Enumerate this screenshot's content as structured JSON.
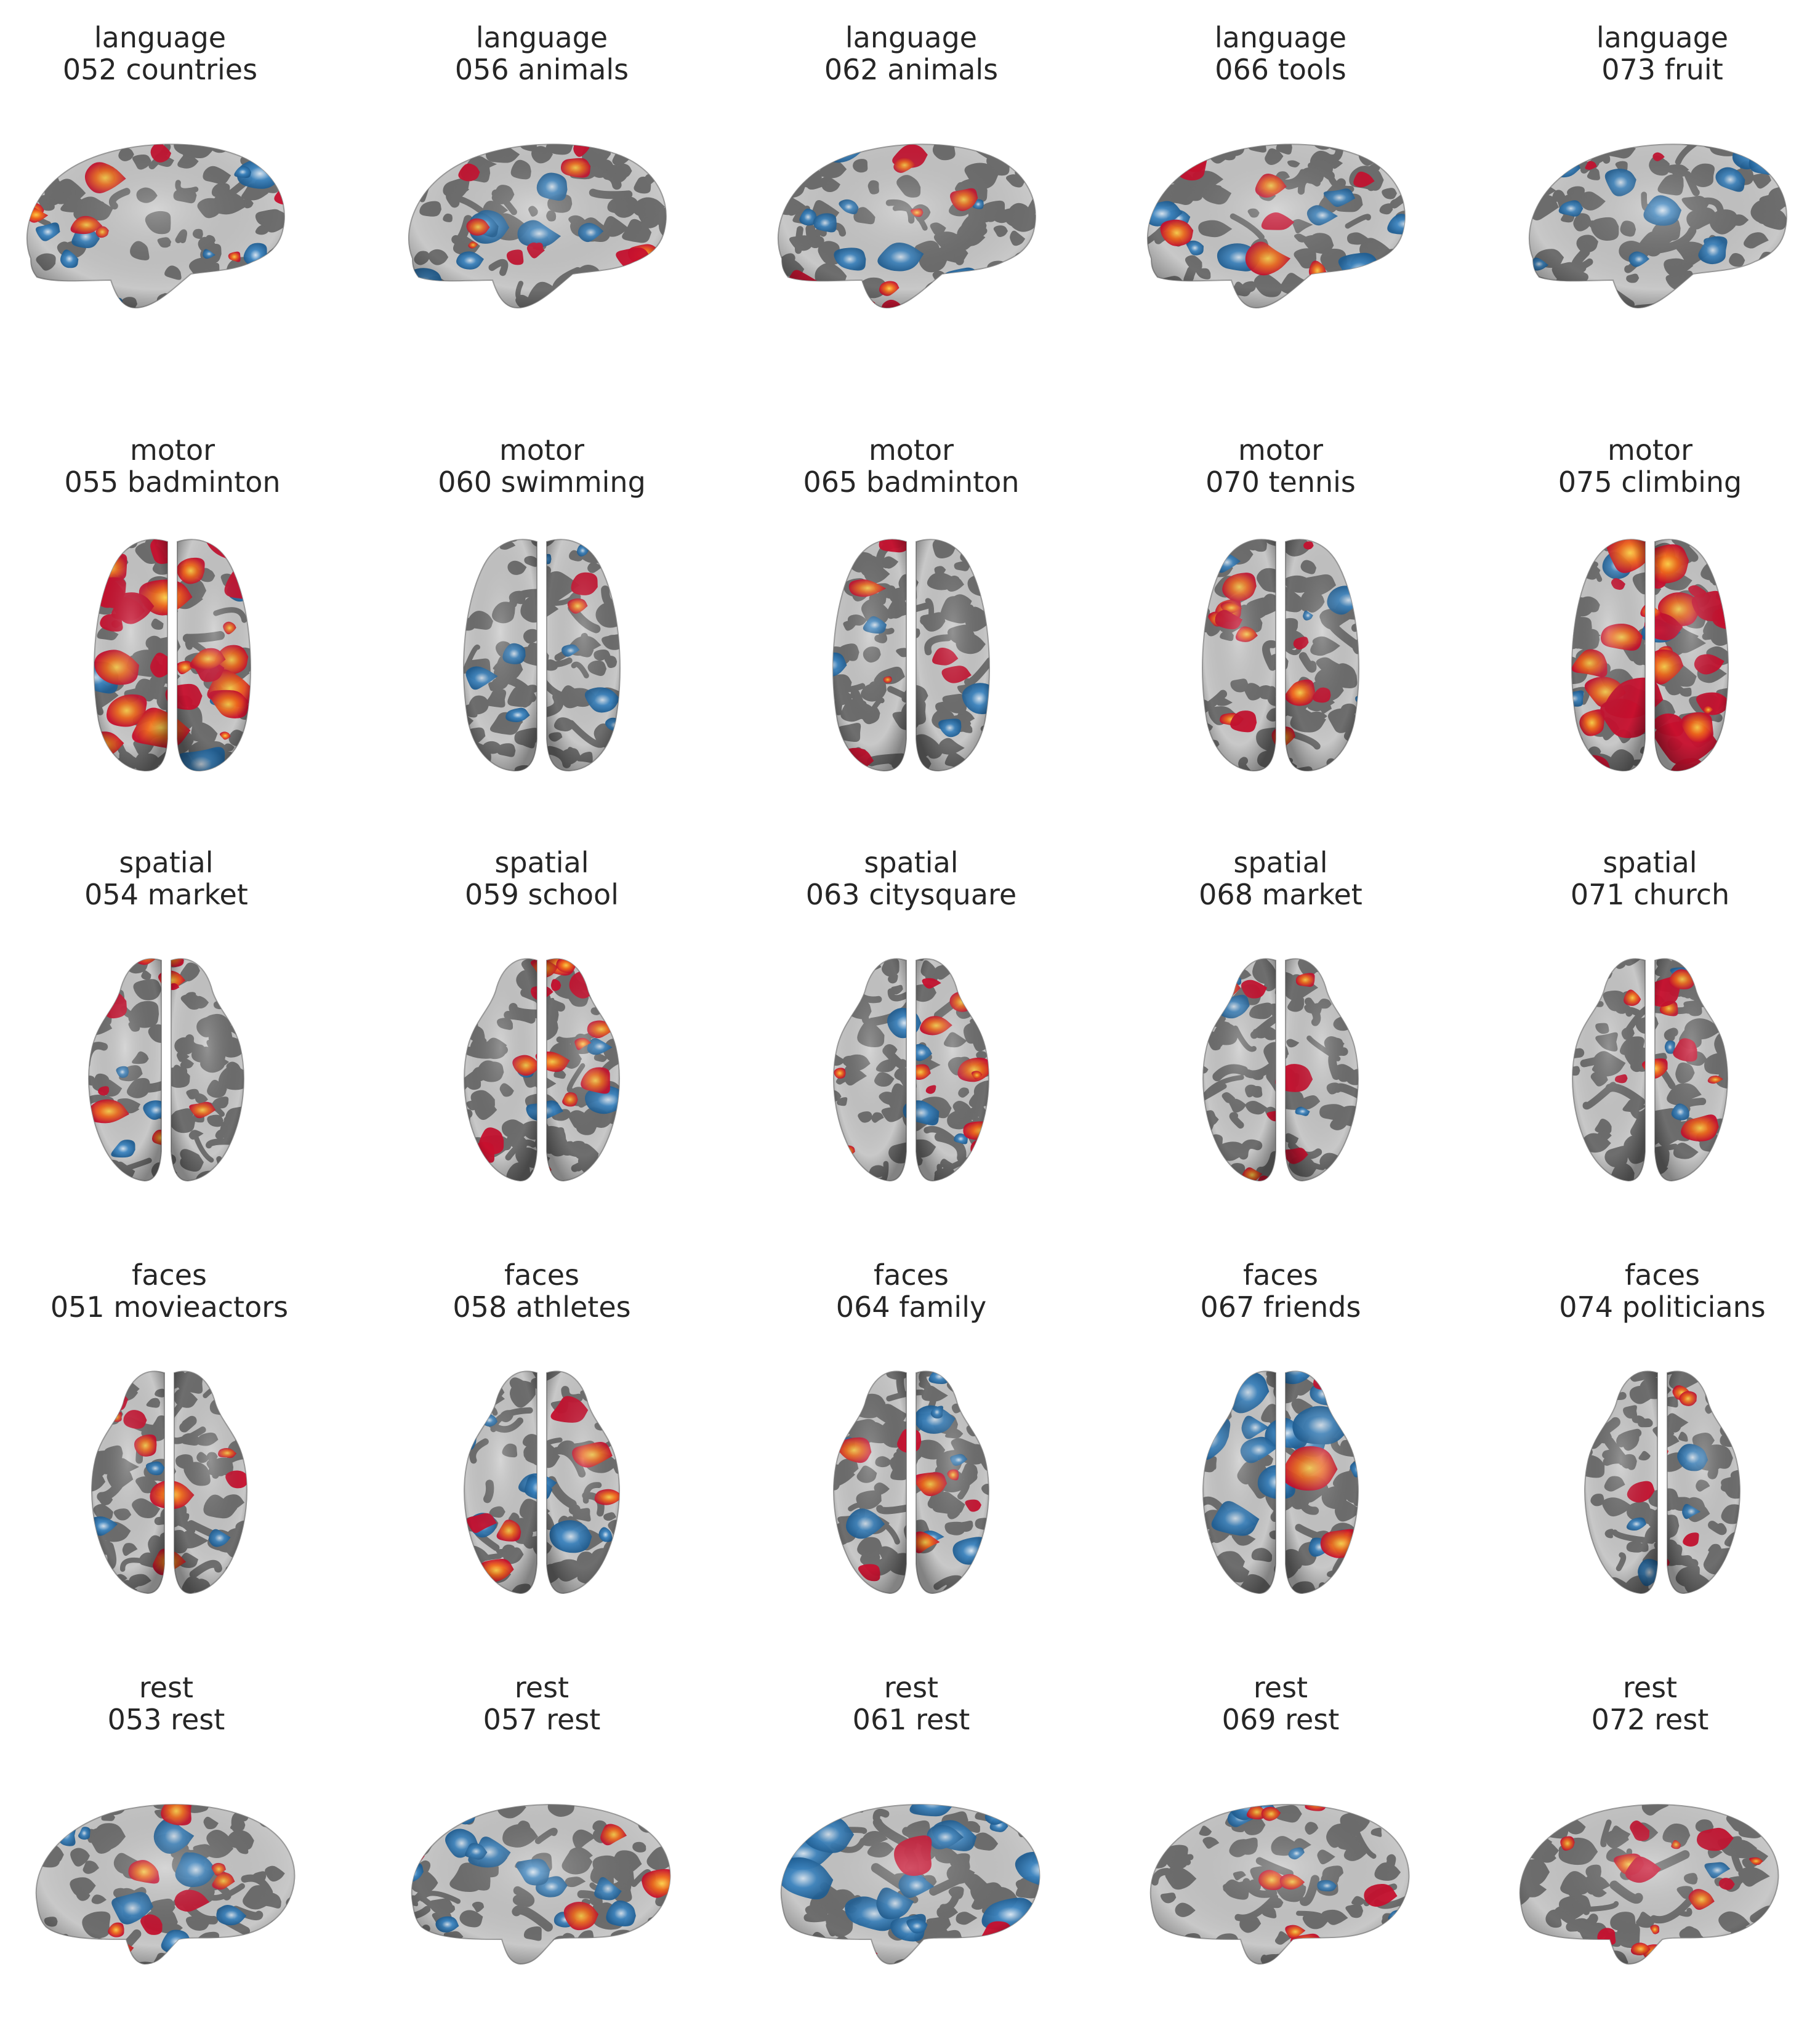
{
  "figure": {
    "rows": [
      {
        "view": "lateral-left",
        "panels": [
          {
            "category": "language",
            "run": "052 countries",
            "balance": "mixed"
          },
          {
            "category": "language",
            "run": "056 animals",
            "balance": "mixed"
          },
          {
            "category": "language",
            "run": "062 animals",
            "balance": "mixed"
          },
          {
            "category": "language",
            "run": "066 tools",
            "balance": "mixed"
          },
          {
            "category": "language",
            "run": "073 fruit",
            "balance": "blue"
          }
        ]
      },
      {
        "view": "dorsal",
        "panels": [
          {
            "category": "motor",
            "run": "055 badminton",
            "balance": "red-heavy"
          },
          {
            "category": "motor",
            "run": "060 swimming",
            "balance": "blue-light"
          },
          {
            "category": "motor",
            "run": "065 badminton",
            "balance": "red-light"
          },
          {
            "category": "motor",
            "run": "070 tennis",
            "balance": "red"
          },
          {
            "category": "motor",
            "run": "075 climbing",
            "balance": "red-heavy"
          }
        ]
      },
      {
        "view": "ventral",
        "panels": [
          {
            "category": "spatial",
            "run": "054 market",
            "balance": "red-light"
          },
          {
            "category": "spatial",
            "run": "059 school",
            "balance": "red"
          },
          {
            "category": "spatial",
            "run": "063 citysquare",
            "balance": "red"
          },
          {
            "category": "spatial",
            "run": "068 market",
            "balance": "red-light"
          },
          {
            "category": "spatial",
            "run": "071 church",
            "balance": "red-light"
          }
        ]
      },
      {
        "view": "ventral",
        "panels": [
          {
            "category": "faces",
            "run": "051 movieactors",
            "balance": "red-light"
          },
          {
            "category": "faces",
            "run": "058 athletes",
            "balance": "mixed-light"
          },
          {
            "category": "faces",
            "run": "064 family",
            "balance": "mixed"
          },
          {
            "category": "faces",
            "run": "067 friends",
            "balance": "blue-heavy"
          },
          {
            "category": "faces",
            "run": "074 politicians",
            "balance": "mixed-light"
          }
        ]
      },
      {
        "view": "medial",
        "panels": [
          {
            "category": "rest",
            "run": "053 rest",
            "balance": "mixed"
          },
          {
            "category": "rest",
            "run": "057 rest",
            "balance": "blue"
          },
          {
            "category": "rest",
            "run": "061 rest",
            "balance": "blue-heavy"
          },
          {
            "category": "rest",
            "run": "069 rest",
            "balance": "mixed"
          },
          {
            "category": "rest",
            "run": "072 rest",
            "balance": "red"
          }
        ]
      }
    ]
  },
  "colors": {
    "background": "#ffffff",
    "text": "#262626",
    "cortex_light": "#c8c8c8",
    "cortex_dark": "#6e6e6e",
    "positive_strong": "#c8102e",
    "positive_peak": "#ffd24a",
    "positive_mid": "#f26a1b",
    "negative_strong": "#1f5f95",
    "negative_peak": "#dbe8f4",
    "negative_mid": "#3d86c2"
  }
}
